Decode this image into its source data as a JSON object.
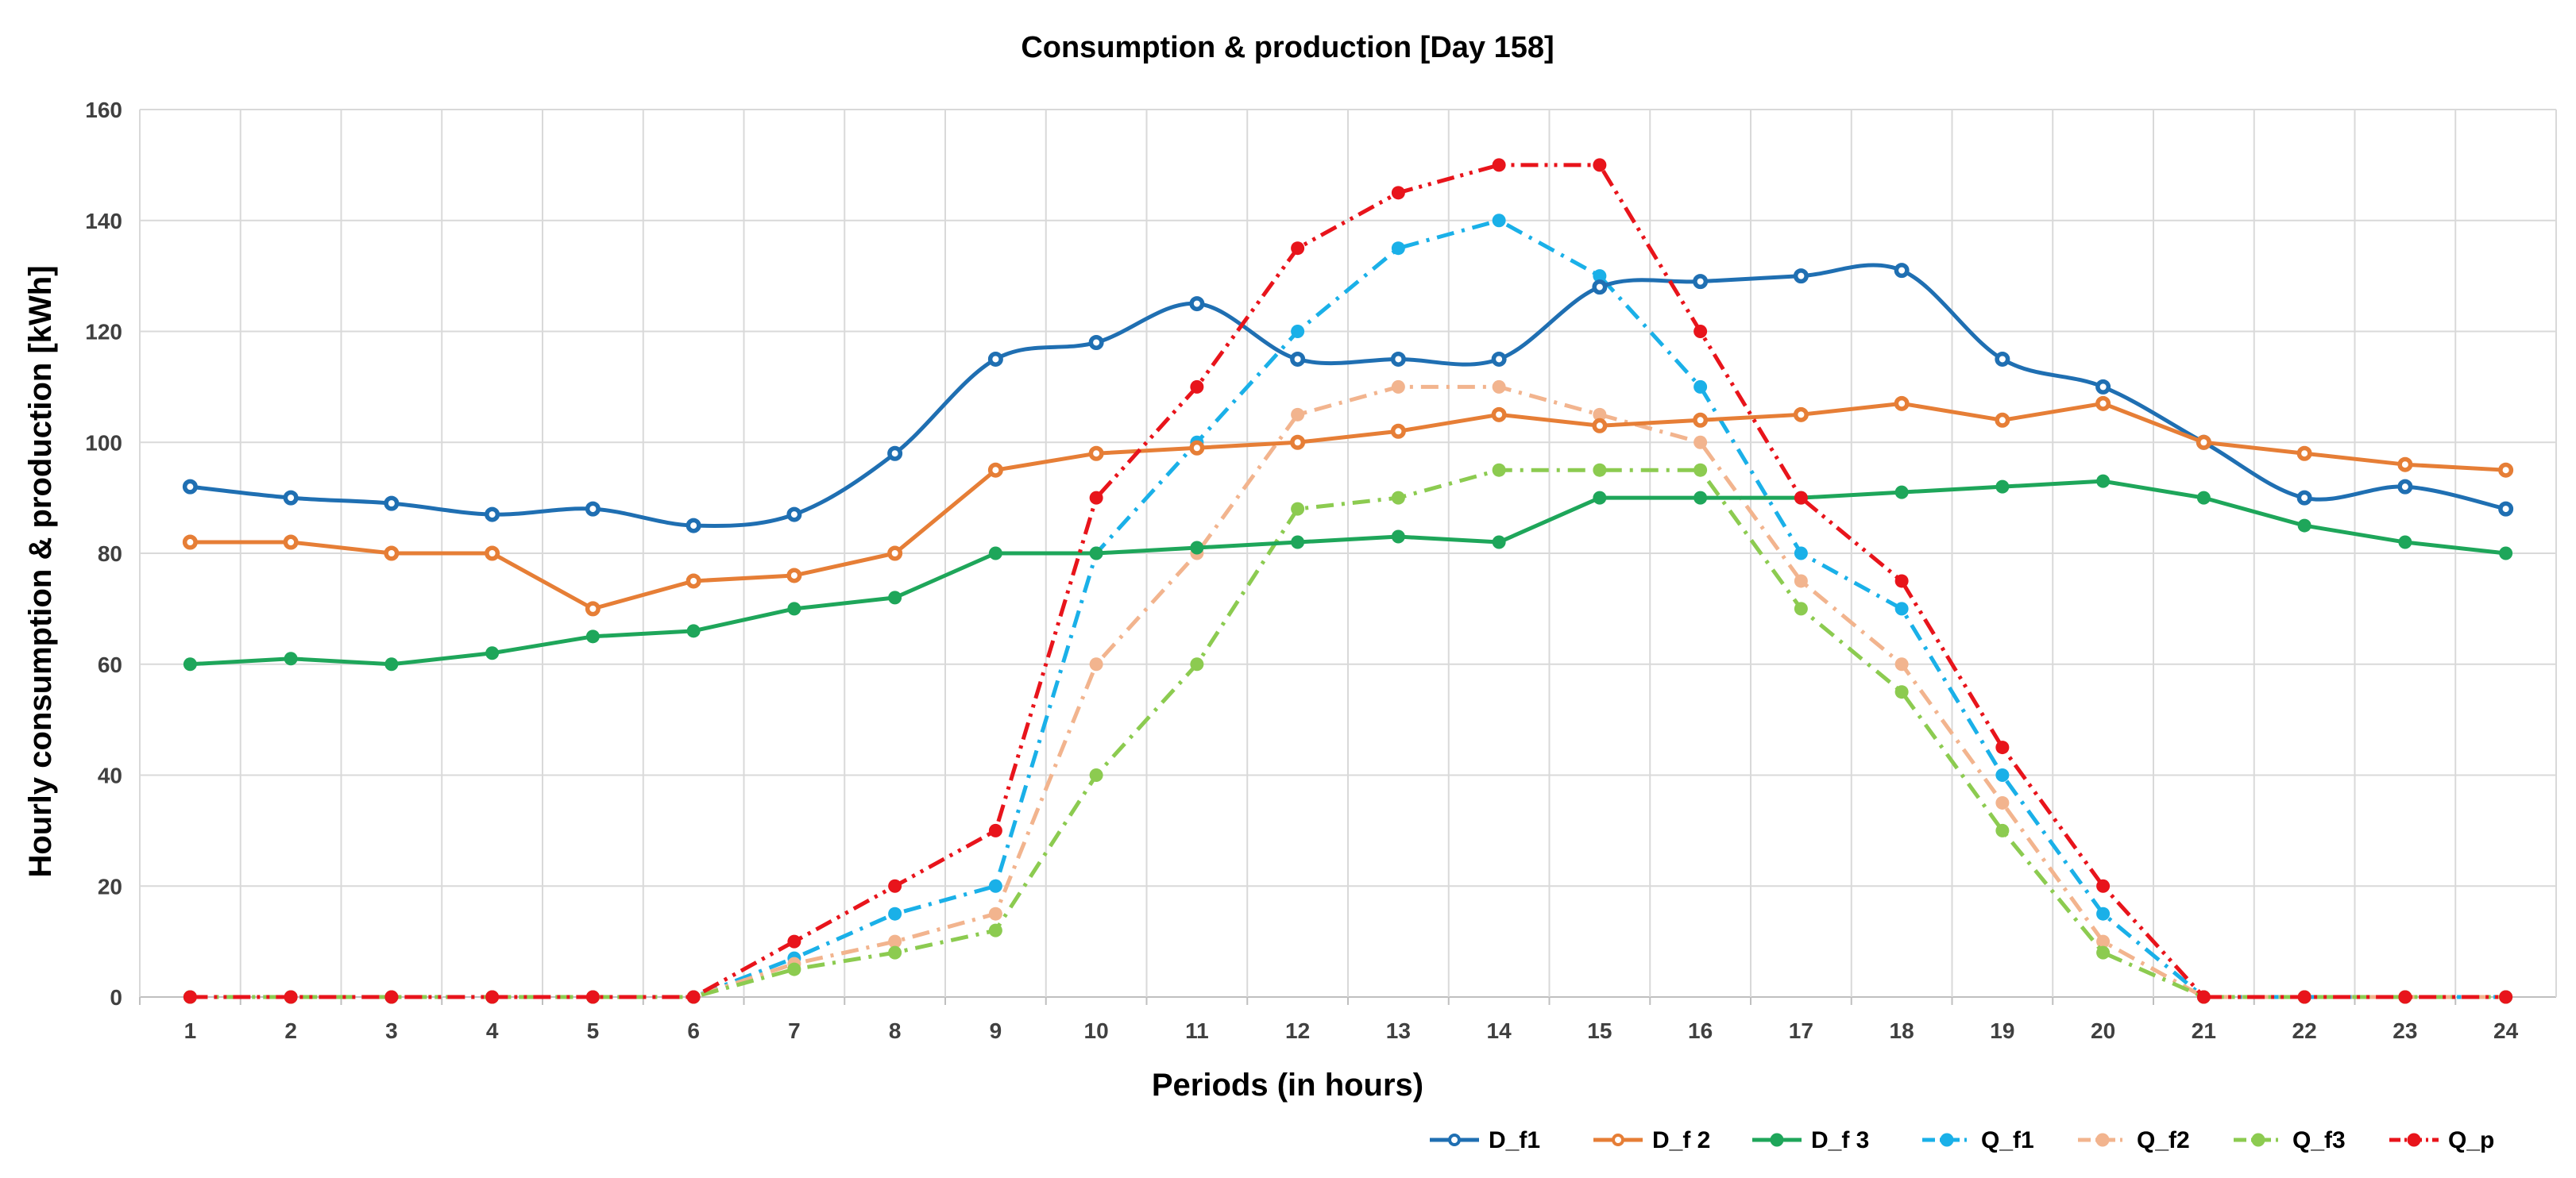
{
  "chart_data": {
    "type": "line",
    "title": "Consumption & production [Day 158]",
    "xlabel": "Periods (in hours)",
    "ylabel": "Hourly consumption & production [kWh]",
    "ylim": [
      0,
      160
    ],
    "yticks": [
      "0",
      "20",
      "40",
      "60",
      "80",
      "100",
      "120",
      "140",
      "160"
    ],
    "categories": [
      "1",
      "2",
      "3",
      "4",
      "5",
      "6",
      "7",
      "8",
      "9",
      "10",
      "11",
      "12",
      "13",
      "14",
      "15",
      "16",
      "17",
      "18",
      "19",
      "20",
      "21",
      "22",
      "23",
      "24"
    ],
    "grid": true,
    "legend_position": "bottom-right",
    "series": [
      {
        "name": "D_f1",
        "color": "#1F6FB2",
        "dash": "solid",
        "smooth": true,
        "marker": "open",
        "values": [
          92,
          90,
          89,
          87,
          88,
          85,
          87,
          98,
          115,
          118,
          125,
          115,
          115,
          115,
          128,
          129,
          130,
          131,
          115,
          110,
          100,
          90,
          92,
          88
        ]
      },
      {
        "name": "D_f 2",
        "color": "#E67E36",
        "dash": "solid",
        "smooth": false,
        "marker": "open",
        "values": [
          82,
          82,
          80,
          80,
          70,
          75,
          76,
          80,
          95,
          98,
          99,
          100,
          102,
          105,
          103,
          104,
          105,
          107,
          104,
          107,
          100,
          98,
          96,
          95
        ]
      },
      {
        "name": "D_f 3",
        "color": "#1EA65A",
        "dash": "solid",
        "smooth": false,
        "marker": "filled",
        "values": [
          60,
          61,
          60,
          62,
          65,
          66,
          70,
          72,
          80,
          80,
          81,
          82,
          83,
          82,
          90,
          90,
          90,
          91,
          92,
          93,
          90,
          85,
          82,
          80
        ]
      },
      {
        "name": "Q_f1",
        "color": "#1AB0E8",
        "dash": "dashdot",
        "smooth": false,
        "marker": "filled",
        "values": [
          0,
          0,
          0,
          0,
          0,
          0,
          7,
          15,
          20,
          80,
          100,
          120,
          135,
          140,
          130,
          110,
          80,
          70,
          40,
          15,
          0,
          0,
          0,
          0
        ]
      },
      {
        "name": "Q_f2",
        "color": "#F2B48E",
        "dash": "dashdot",
        "smooth": false,
        "marker": "filled",
        "values": [
          0,
          0,
          0,
          0,
          0,
          0,
          6,
          10,
          15,
          60,
          80,
          105,
          110,
          110,
          105,
          100,
          75,
          60,
          35,
          10,
          0,
          0,
          0,
          0
        ]
      },
      {
        "name": "Q_f3",
        "color": "#8CCB50",
        "dash": "dashdot",
        "smooth": false,
        "marker": "filled",
        "values": [
          0,
          0,
          0,
          0,
          0,
          0,
          5,
          8,
          12,
          40,
          60,
          88,
          90,
          95,
          95,
          95,
          70,
          55,
          30,
          8,
          0,
          0,
          0,
          0
        ]
      },
      {
        "name": "Q_p",
        "color": "#E8141B",
        "dash": "dashdotdot",
        "smooth": false,
        "marker": "filled",
        "values": [
          0,
          0,
          0,
          0,
          0,
          0,
          10,
          20,
          30,
          90,
          110,
          135,
          145,
          150,
          150,
          120,
          90,
          75,
          45,
          20,
          0,
          0,
          0,
          0
        ]
      }
    ]
  }
}
